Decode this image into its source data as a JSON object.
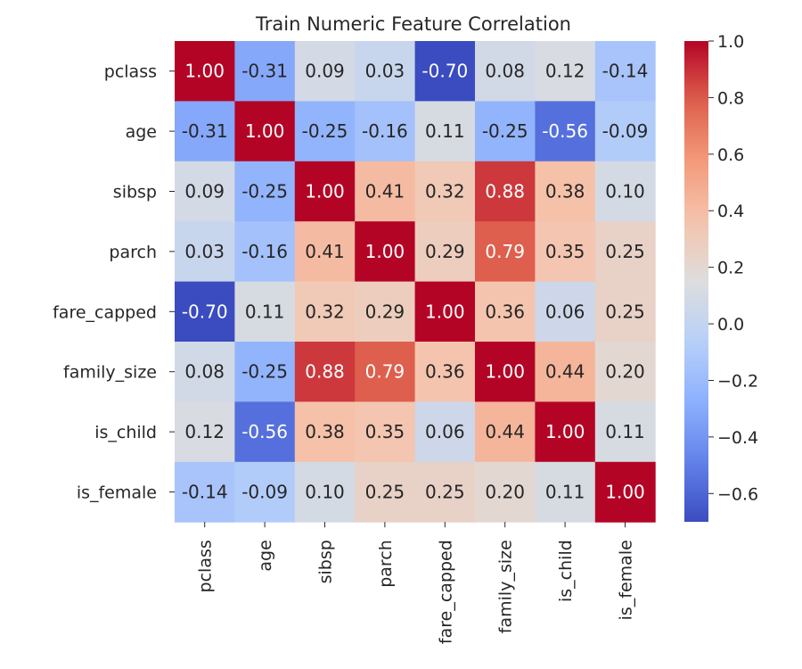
{
  "chart_data": {
    "type": "heatmap",
    "title": "Train Numeric Feature Correlation",
    "row_labels": [
      "pclass",
      "age",
      "sibsp",
      "parch",
      "fare_capped",
      "family_size",
      "is_child",
      "is_female"
    ],
    "col_labels": [
      "pclass",
      "age",
      "sibsp",
      "parch",
      "fare_capped",
      "family_size",
      "is_child",
      "is_female"
    ],
    "values": [
      [
        1.0,
        -0.31,
        0.09,
        0.03,
        -0.7,
        0.08,
        0.12,
        -0.14
      ],
      [
        -0.31,
        1.0,
        -0.25,
        -0.16,
        0.11,
        -0.25,
        -0.56,
        -0.09
      ],
      [
        0.09,
        -0.25,
        1.0,
        0.41,
        0.32,
        0.88,
        0.38,
        0.1
      ],
      [
        0.03,
        -0.16,
        0.41,
        1.0,
        0.29,
        0.79,
        0.35,
        0.25
      ],
      [
        -0.7,
        0.11,
        0.32,
        0.29,
        1.0,
        0.36,
        0.06,
        0.25
      ],
      [
        0.08,
        -0.25,
        0.88,
        0.79,
        0.36,
        1.0,
        0.44,
        0.2
      ],
      [
        0.12,
        -0.56,
        0.38,
        0.35,
        0.06,
        0.44,
        1.0,
        0.11
      ],
      [
        -0.14,
        -0.09,
        0.1,
        0.25,
        0.25,
        0.2,
        0.11,
        1.0
      ]
    ],
    "value_format": "0.00",
    "colormap": "coolwarm",
    "vmin": -0.7,
    "vmax": 1.0,
    "colorbar_ticks": [
      "1.0",
      "0.8",
      "0.6",
      "0.4",
      "0.2",
      "0.0",
      "−0.2",
      "−0.4",
      "−0.6"
    ],
    "colorbar_tick_values": [
      1.0,
      0.8,
      0.6,
      0.4,
      0.2,
      0.0,
      -0.2,
      -0.4,
      -0.6
    ],
    "grid": false
  }
}
